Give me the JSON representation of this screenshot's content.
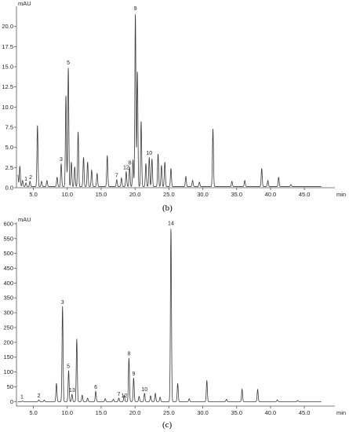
{
  "chart_data": [
    {
      "type": "line",
      "panel_label": "(b)",
      "ylabel": "mAU",
      "xlabel": "min",
      "xlim": [
        2.5,
        49.5
      ],
      "ylim": [
        0,
        22.5
      ],
      "xticks": [
        "5.0",
        "10.0",
        "15.0",
        "20.0",
        "25.0",
        "30.0",
        "35.0",
        "40.0",
        "45.0"
      ],
      "xtick_values": [
        5,
        10,
        15,
        20,
        25,
        30,
        35,
        40,
        45
      ],
      "yticks": [
        "0.0",
        "2.5",
        "5.0",
        "7.5",
        "10.0",
        "12.5",
        "15.0",
        "17.5",
        "20.0"
      ],
      "ytick_values": [
        0,
        2.5,
        5,
        7.5,
        10,
        12.5,
        15,
        17.5,
        20
      ],
      "baseline": 0.15,
      "peaks": [
        {
          "x": 2.7,
          "y": 1.6
        },
        {
          "x": 3.0,
          "y": 2.7
        },
        {
          "x": 3.4,
          "y": 0.9
        },
        {
          "x": 3.9,
          "y": 0.6
        },
        {
          "x": 4.5,
          "y": 0.8
        },
        {
          "x": 5.6,
          "y": 7.8
        },
        {
          "x": 6.2,
          "y": 0.8
        },
        {
          "x": 7.0,
          "y": 0.9
        },
        {
          "x": 8.5,
          "y": 1.3
        },
        {
          "x": 9.1,
          "y": 3.0
        },
        {
          "x": 9.8,
          "y": 11.5
        },
        {
          "x": 10.15,
          "y": 15.0
        },
        {
          "x": 10.6,
          "y": 3.2
        },
        {
          "x": 11.1,
          "y": 2.6
        },
        {
          "x": 11.6,
          "y": 7.0
        },
        {
          "x": 12.4,
          "y": 3.8
        },
        {
          "x": 13.0,
          "y": 3.2
        },
        {
          "x": 13.6,
          "y": 2.2
        },
        {
          "x": 14.4,
          "y": 1.8
        },
        {
          "x": 15.9,
          "y": 4.0
        },
        {
          "x": 17.3,
          "y": 1.0
        },
        {
          "x": 18.0,
          "y": 1.2
        },
        {
          "x": 18.7,
          "y": 2.0
        },
        {
          "x": 19.2,
          "y": 2.6
        },
        {
          "x": 19.7,
          "y": 3.5
        },
        {
          "x": 20.05,
          "y": 21.7
        },
        {
          "x": 20.35,
          "y": 14.5
        },
        {
          "x": 20.9,
          "y": 8.3
        },
        {
          "x": 21.6,
          "y": 3.0
        },
        {
          "x": 22.1,
          "y": 3.8
        },
        {
          "x": 22.5,
          "y": 3.6
        },
        {
          "x": 23.4,
          "y": 4.2
        },
        {
          "x": 23.9,
          "y": 2.8
        },
        {
          "x": 24.4,
          "y": 3.2
        },
        {
          "x": 25.3,
          "y": 2.4
        },
        {
          "x": 27.5,
          "y": 1.4
        },
        {
          "x": 28.5,
          "y": 0.9
        },
        {
          "x": 29.5,
          "y": 0.7
        },
        {
          "x": 31.5,
          "y": 7.3
        },
        {
          "x": 34.3,
          "y": 0.8
        },
        {
          "x": 36.2,
          "y": 0.9
        },
        {
          "x": 38.7,
          "y": 2.4
        },
        {
          "x": 39.6,
          "y": 0.9
        },
        {
          "x": 41.2,
          "y": 1.3
        },
        {
          "x": 43.0,
          "y": 0.4
        }
      ],
      "annotations": [
        {
          "label": "1",
          "x": 3.9,
          "y": 0.6
        },
        {
          "label": "2",
          "x": 4.6,
          "y": 0.8
        },
        {
          "label": "3",
          "x": 9.1,
          "y": 3.0
        },
        {
          "label": "5",
          "x": 10.15,
          "y": 15.0
        },
        {
          "label": "7",
          "x": 17.3,
          "y": 1.0
        },
        {
          "label": "12",
          "x": 18.7,
          "y": 2.0
        },
        {
          "label": "8",
          "x": 19.25,
          "y": 2.6
        },
        {
          "label": "9",
          "x": 20.05,
          "y": 21.7
        },
        {
          "label": "10",
          "x": 22.1,
          "y": 3.8
        }
      ]
    },
    {
      "type": "line",
      "panel_label": "(c)",
      "ylabel": "mAU",
      "xlabel": "min",
      "xlim": [
        2.5,
        49.5
      ],
      "ylim": [
        -15,
        605
      ],
      "xticks": [
        "5.0",
        "10.0",
        "15.0",
        "20.0",
        "25.0",
        "30.0",
        "35.0",
        "40.0",
        "45.0"
      ],
      "xtick_values": [
        5,
        10,
        15,
        20,
        25,
        30,
        35,
        40,
        45
      ],
      "yticks": [
        "0",
        "50",
        "100",
        "150",
        "200",
        "250",
        "300",
        "350",
        "400",
        "450",
        "500",
        "550",
        "600"
      ],
      "ytick_values": [
        0,
        50,
        100,
        150,
        200,
        250,
        300,
        350,
        400,
        450,
        500,
        550,
        600
      ],
      "baseline": 0,
      "peaks": [
        {
          "x": 3.4,
          "y": 2
        },
        {
          "x": 5.8,
          "y": 6
        },
        {
          "x": 6.6,
          "y": 5
        },
        {
          "x": 8.4,
          "y": 62
        },
        {
          "x": 9.3,
          "y": 322
        },
        {
          "x": 10.2,
          "y": 105
        },
        {
          "x": 10.7,
          "y": 25
        },
        {
          "x": 11.4,
          "y": 212
        },
        {
          "x": 12.2,
          "y": 22
        },
        {
          "x": 13.0,
          "y": 12
        },
        {
          "x": 14.2,
          "y": 35
        },
        {
          "x": 15.6,
          "y": 10
        },
        {
          "x": 16.8,
          "y": 8
        },
        {
          "x": 17.6,
          "y": 12
        },
        {
          "x": 18.4,
          "y": 22
        },
        {
          "x": 19.1,
          "y": 148
        },
        {
          "x": 19.8,
          "y": 80
        },
        {
          "x": 20.6,
          "y": 18
        },
        {
          "x": 21.4,
          "y": 28
        },
        {
          "x": 22.3,
          "y": 20
        },
        {
          "x": 23.0,
          "y": 28
        },
        {
          "x": 23.7,
          "y": 15
        },
        {
          "x": 25.3,
          "y": 588
        },
        {
          "x": 26.3,
          "y": 62
        },
        {
          "x": 28.0,
          "y": 10
        },
        {
          "x": 30.6,
          "y": 72
        },
        {
          "x": 33.5,
          "y": 8
        },
        {
          "x": 35.8,
          "y": 42
        },
        {
          "x": 38.1,
          "y": 42
        },
        {
          "x": 41.0,
          "y": 6
        },
        {
          "x": 44.0,
          "y": 4
        }
      ],
      "annotations": [
        {
          "label": "1",
          "x": 3.3,
          "y": 2
        },
        {
          "label": "2",
          "x": 5.8,
          "y": 6
        },
        {
          "label": "3",
          "x": 9.3,
          "y": 322
        },
        {
          "label": "5",
          "x": 10.15,
          "y": 105
        },
        {
          "label": "13",
          "x": 10.7,
          "y": 25
        },
        {
          "label": "6",
          "x": 14.2,
          "y": 35
        },
        {
          "label": "7",
          "x": 17.6,
          "y": 12
        },
        {
          "label": "12",
          "x": 18.4,
          "y": 6
        },
        {
          "label": "8",
          "x": 19.1,
          "y": 148
        },
        {
          "label": "9",
          "x": 19.8,
          "y": 80
        },
        {
          "label": "10",
          "x": 21.4,
          "y": 28
        },
        {
          "label": "14",
          "x": 25.3,
          "y": 588
        }
      ]
    }
  ]
}
